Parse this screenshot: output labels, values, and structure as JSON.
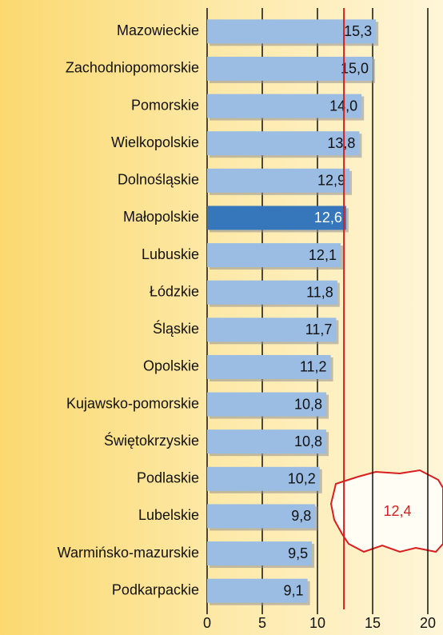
{
  "chart_data": {
    "type": "bar",
    "orientation": "horizontal",
    "categories": [
      "Mazowieckie",
      "Zachodniopomorskie",
      "Pomorskie",
      "Wielkopolskie",
      "Dolnośląskie",
      "Małopolskie",
      "Lubuskie",
      "Łódzkie",
      "Śląskie",
      "Opolskie",
      "Kujawsko-pomorskie",
      "Świętokrzyskie",
      "Podlaskie",
      "Lubelskie",
      "Warmińsko-mazurskie",
      "Podkarpackie"
    ],
    "values": [
      15.3,
      15.0,
      14.0,
      13.8,
      12.9,
      12.6,
      12.1,
      11.8,
      11.7,
      11.2,
      10.8,
      10.8,
      10.2,
      9.8,
      9.5,
      9.1
    ],
    "value_labels": [
      "15,3",
      "15,0",
      "14,0",
      "13,8",
      "12,9",
      "12,6",
      "12,1",
      "11,8",
      "11,7",
      "11,2",
      "10,8",
      "10,8",
      "10,2",
      "9,8",
      "9,5",
      "9,1"
    ],
    "colors": [
      "#9bbde3",
      "#9bbde3",
      "#9bbde3",
      "#9bbde3",
      "#9bbde3",
      "#3677bb",
      "#9bbde3",
      "#9bbde3",
      "#9bbde3",
      "#9bbde3",
      "#9bbde3",
      "#9bbde3",
      "#9bbde3",
      "#9bbde3",
      "#9bbde3",
      "#9bbde3"
    ],
    "xlim": [
      0,
      20
    ],
    "xticks": [
      0,
      5,
      10,
      15,
      20
    ],
    "grid": true,
    "reference": {
      "value": 12.4,
      "label": "12,4",
      "color": "#d81e1e"
    }
  }
}
